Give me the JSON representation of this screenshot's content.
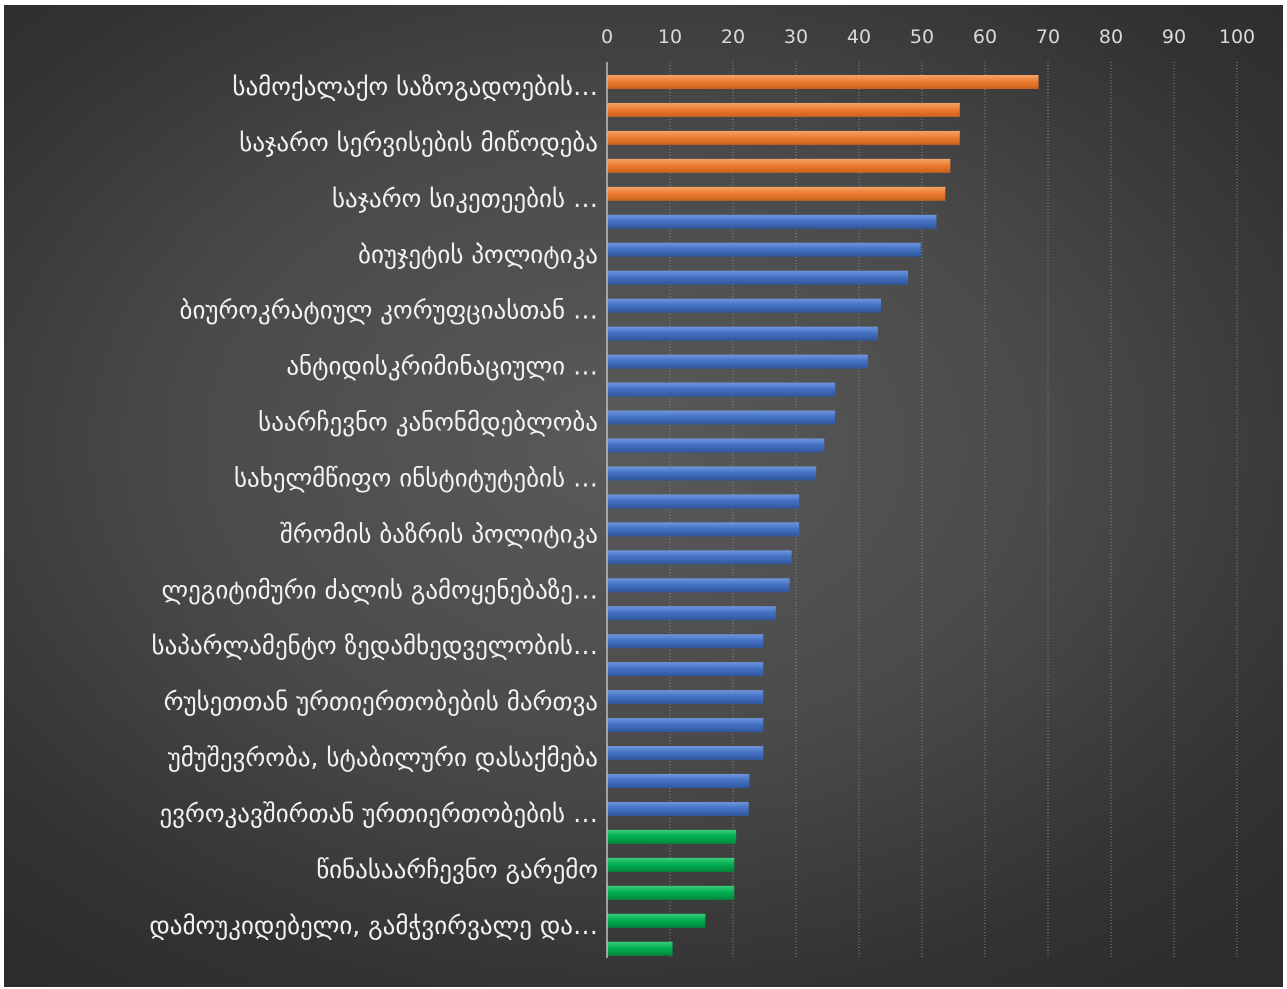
{
  "chart_data": {
    "type": "bar",
    "orientation": "horizontal",
    "x_axis_position": "top",
    "grid": true,
    "xlim": [
      0,
      100
    ],
    "x_ticks": [
      "0",
      "10",
      "20",
      "30",
      "40",
      "50",
      "60",
      "70",
      "80",
      "90",
      "100"
    ],
    "colors": {
      "orange": "#ed7d31",
      "blue": "#4472c4",
      "green": "#00b050"
    },
    "bars": [
      {
        "label": "სამოქალაქო საზოგადოების…",
        "value": 68.5,
        "color": "orange"
      },
      {
        "label": "",
        "value": 56,
        "color": "orange"
      },
      {
        "label": "საჯარო სერვისების მიწოდება",
        "value": 56,
        "color": "orange"
      },
      {
        "label": "",
        "value": 54.5,
        "color": "orange"
      },
      {
        "label": "საჯარო სიკეთეების …",
        "value": 53.7,
        "color": "orange"
      },
      {
        "label": "",
        "value": 52.3,
        "color": "blue"
      },
      {
        "label": "ბიუჯეტის პოლიტიკა",
        "value": 49.8,
        "color": "blue"
      },
      {
        "label": "",
        "value": 47.8,
        "color": "blue"
      },
      {
        "label": "ბიუროკრატიულ კორუფციასთან …",
        "value": 43.5,
        "color": "blue"
      },
      {
        "label": "",
        "value": 43,
        "color": "blue"
      },
      {
        "label": "ანტიდისკრიმინაციული …",
        "value": 41.4,
        "color": "blue"
      },
      {
        "label": "",
        "value": 36.2,
        "color": "blue"
      },
      {
        "label": "საარჩევნო კანონმდებლობა",
        "value": 36.2,
        "color": "blue"
      },
      {
        "label": "",
        "value": 34.5,
        "color": "blue"
      },
      {
        "label": "სახელმწიფო ინსტიტუტების …",
        "value": 33.2,
        "color": "blue"
      },
      {
        "label": "",
        "value": 30.5,
        "color": "blue"
      },
      {
        "label": "შრომის ბაზრის პოლიტიკა",
        "value": 30.5,
        "color": "blue"
      },
      {
        "label": "",
        "value": 29.3,
        "color": "blue"
      },
      {
        "label": "ლეგიტიმური ძალის გამოყენებაზე…",
        "value": 29,
        "color": "blue"
      },
      {
        "label": "",
        "value": 26.8,
        "color": "blue"
      },
      {
        "label": "საპარლამენტო ზედამხედველობის…",
        "value": 24.8,
        "color": "blue"
      },
      {
        "label": "",
        "value": 24.8,
        "color": "blue"
      },
      {
        "label": "რუსეთთან ურთიერთობების მართვა",
        "value": 24.8,
        "color": "blue"
      },
      {
        "label": "",
        "value": 24.8,
        "color": "blue"
      },
      {
        "label": "უმუშევრობა, სტაბილური დასაქმება",
        "value": 24.8,
        "color": "blue"
      },
      {
        "label": "",
        "value": 22.6,
        "color": "blue"
      },
      {
        "label": "ევროკავშირთან ურთიერთობების …",
        "value": 22.5,
        "color": "blue"
      },
      {
        "label": "",
        "value": 20.5,
        "color": "green"
      },
      {
        "label": "წინასაარჩევნო გარემო",
        "value": 20.2,
        "color": "green"
      },
      {
        "label": "",
        "value": 20.2,
        "color": "green"
      },
      {
        "label": "დამოუკიდებელი, გამჭვირვალე და…",
        "value": 15.6,
        "color": "green"
      },
      {
        "label": "",
        "value": 10.4,
        "color": "green"
      }
    ]
  }
}
